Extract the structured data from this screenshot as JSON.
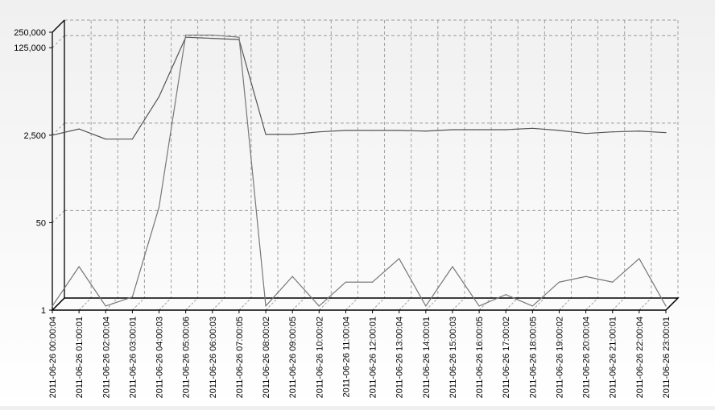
{
  "chart_data": {
    "type": "line",
    "yscale": "log",
    "ylim": [
      1,
      250000
    ],
    "yticks": [
      {
        "value": 1,
        "label": "1"
      },
      {
        "value": 50,
        "label": "50"
      },
      {
        "value": 2500,
        "label": "2,500"
      },
      {
        "value": 125000,
        "label": "125,000"
      },
      {
        "value": 250000,
        "label": "250,000"
      }
    ],
    "categories": [
      "2011-06-26 00:00:04",
      "2011-06-26 01:00:01",
      "2011-06-26 02:00:04",
      "2011-06-26 03:00:01",
      "2011-06-26 04:00:03",
      "2011-06-26 05:00:06",
      "2011-06-26 06:00:03",
      "2011-06-26 07:00:05",
      "2011-06-26 08:00:02",
      "2011-06-26 09:00:05",
      "2011-06-26 10:00:02",
      "2011-06-26 11:00:04",
      "2011-06-26 12:00:01",
      "2011-06-26 13:00:04",
      "2011-06-26 14:00:01",
      "2011-06-26 15:00:03",
      "2011-06-26 16:00:05",
      "2011-06-26 17:00:02",
      "2011-06-26 18:00:05",
      "2011-06-26 19:00:02",
      "2011-06-26 20:00:04",
      "2011-06-26 21:00:01",
      "2011-06-26 22:00:04",
      "2011-06-26 23:00:01"
    ],
    "series": [
      {
        "values": [
          2500,
          3300,
          2100,
          2100,
          14000,
          200000,
          190000,
          180000,
          2600,
          2600,
          2900,
          3100,
          3100,
          3100,
          3000,
          3200,
          3200,
          3200,
          3400,
          3100,
          2700,
          2900,
          3000,
          2800
        ],
        "color": "#555555"
      },
      {
        "values": [
          1.2,
          7,
          1.2,
          1.8,
          100,
          220000,
          220000,
          200000,
          1.2,
          4.5,
          1.2,
          3.5,
          3.5,
          10,
          1.2,
          7,
          1.2,
          2,
          1.2,
          3.5,
          4.5,
          3.5,
          10,
          1.2
        ],
        "color": "#777777"
      }
    ],
    "grid": true,
    "grid_style": "dashed",
    "legend": "none"
  }
}
